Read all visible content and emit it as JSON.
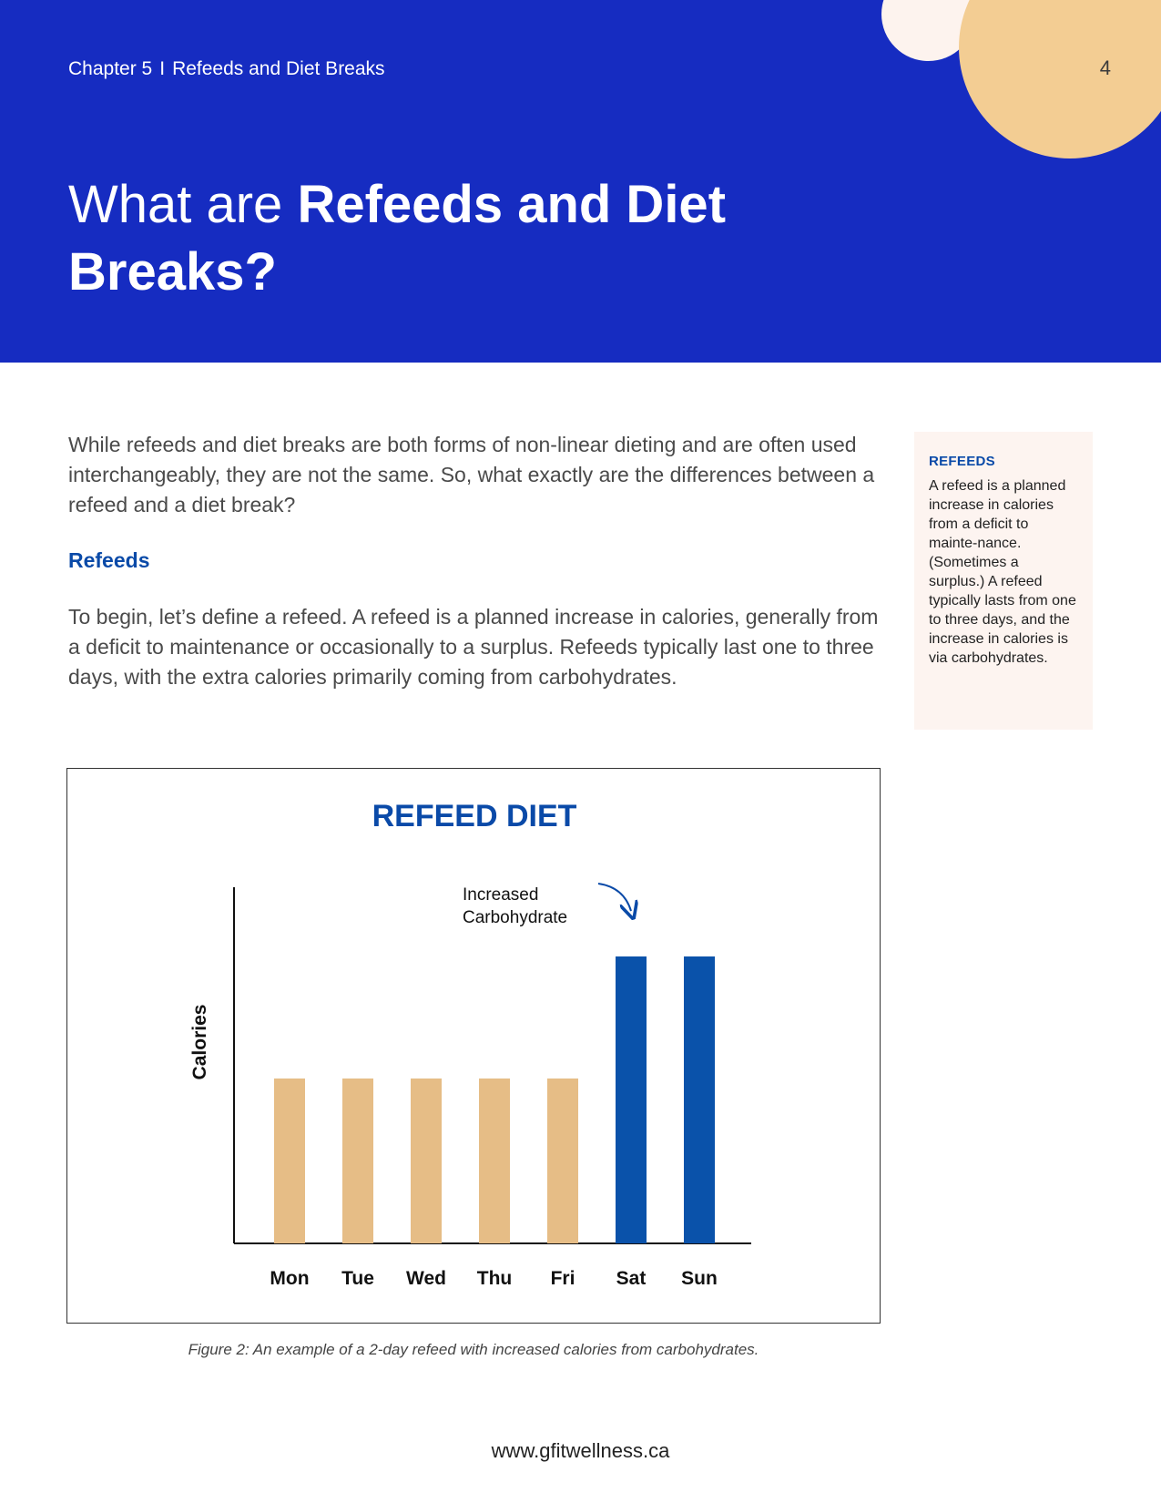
{
  "header": {
    "chapter": "Chapter 5",
    "separator": "I",
    "chapter_title": "Refeeds and Diet Breaks",
    "page_number": "4",
    "title_regular": "What are ",
    "title_bold": "Refeeds and Diet Breaks?",
    "colors": {
      "band": "#162cc1",
      "circle_small": "#fdf3ee",
      "circle_large": "#f3cd93"
    }
  },
  "main": {
    "intro": "While refeeds and diet breaks are both forms of non-linear dieting and are often used interchangeably, they are not the same. So, what exactly are the differences between a refeed and a diet break?",
    "section_heading": "Refeeds",
    "paragraph": "To begin, let’s define a refeed. A refeed is a planned increase in calories, generally from a deficit to maintenance or occasionally to a surplus. Refeeds typically last one to three days, with the extra calories primarily coming from carbohydrates."
  },
  "sidebar": {
    "heading": "REFEEDS",
    "body": "A refeed is a planned increase in calories from a deficit to mainte-nance. (Sometimes a surplus.) A refeed typically lasts from one to three days, and the increase in calories is via carbohydrates."
  },
  "chart_data": {
    "type": "bar",
    "title": "REFEED DIET",
    "xlabel": "",
    "ylabel": "Calories",
    "categories": [
      "Mon",
      "Tue",
      "Wed",
      "Thu",
      "Fri",
      "Sat",
      "Sun"
    ],
    "values": [
      50,
      50,
      50,
      50,
      50,
      87,
      87
    ],
    "ylim": [
      0,
      108
    ],
    "highlight": [
      false,
      false,
      false,
      false,
      false,
      true,
      true
    ],
    "annotation": {
      "lines": [
        "Increased",
        "Carbohydrate"
      ],
      "target": "Sat"
    },
    "colors": {
      "base": "#e6bd86",
      "highlight": "#0a52aa",
      "title": "#0a4aa8",
      "axis": "#111111"
    },
    "grid": false
  },
  "figure_caption": "Figure 2: An example of a 2-day refeed with increased calories from carbohydrates.",
  "footer": {
    "url": "www.gfitwellness.ca"
  }
}
